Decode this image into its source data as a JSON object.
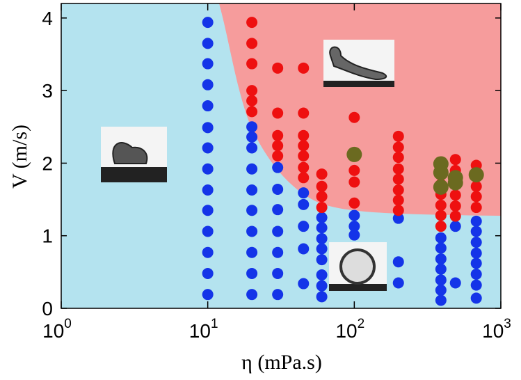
{
  "chart_data": {
    "type": "scatter",
    "xlabel": "η (mPa.s)",
    "ylabel": "V (m/s)",
    "xscale": "log",
    "xlim": [
      1,
      1000
    ],
    "ylim": [
      0,
      4.2
    ],
    "xticks": [
      {
        "value": 1,
        "label": "10",
        "exponent": "0"
      },
      {
        "value": 10,
        "label": "10",
        "exponent": "1"
      },
      {
        "value": 100,
        "label": "10",
        "exponent": "2"
      },
      {
        "value": 1000,
        "label": "10",
        "exponent": "3"
      }
    ],
    "yticks": [
      0,
      1,
      2,
      3,
      4
    ],
    "series": [
      {
        "color": "#1434e8",
        "x": [
          10,
          10,
          10,
          10,
          10,
          10,
          10,
          10,
          10,
          10,
          10,
          10,
          10,
          10,
          20,
          20,
          20,
          20,
          20,
          20,
          20,
          20,
          20,
          20,
          30,
          30,
          30,
          30,
          30,
          30,
          30,
          45,
          45,
          45,
          45,
          45,
          60,
          60,
          60,
          60,
          60,
          60,
          60,
          60,
          100,
          100,
          100,
          200,
          200,
          200,
          390,
          390,
          390,
          390,
          390,
          390,
          390,
          490,
          490,
          680,
          680,
          680,
          680,
          680,
          680,
          680,
          680
        ],
        "values": [
          3.94,
          3.65,
          3.37,
          3.08,
          2.79,
          2.49,
          2.21,
          1.92,
          1.63,
          1.35,
          1.06,
          0.77,
          0.48,
          0.19,
          2.5,
          2.36,
          2.21,
          1.92,
          1.63,
          1.35,
          1.06,
          0.77,
          0.48,
          0.19,
          1.94,
          1.64,
          1.36,
          1.06,
          0.77,
          0.48,
          0.19,
          1.59,
          1.43,
          1.13,
          0.82,
          0.34,
          1.25,
          1.11,
          0.96,
          0.82,
          0.67,
          0.46,
          0.31,
          0.16,
          1.28,
          1.13,
          1.01,
          1.24,
          0.64,
          0.35,
          0.97,
          0.83,
          0.68,
          0.54,
          0.39,
          0.25,
          0.11,
          1.13,
          0.35,
          1.2,
          1.06,
          0.91,
          0.76,
          0.62,
          0.47,
          0.32,
          0.14
        ]
      },
      {
        "color": "#ee1010",
        "x": [
          20,
          20,
          20,
          20,
          20,
          20,
          30,
          30,
          30,
          30,
          30,
          45,
          45,
          45,
          45,
          45,
          45,
          45,
          60,
          60,
          60,
          60,
          100,
          100,
          100,
          100,
          100,
          200,
          200,
          200,
          200,
          200,
          200,
          200,
          200,
          390,
          390,
          390,
          390,
          390,
          390,
          490,
          490,
          490,
          490,
          490,
          490,
          680,
          680,
          680,
          680,
          680
        ],
        "values": [
          3.94,
          3.65,
          3.37,
          3.0,
          2.86,
          2.71,
          3.31,
          2.69,
          2.38,
          2.24,
          2.1,
          3.31,
          2.69,
          2.38,
          2.24,
          2.1,
          1.94,
          1.8,
          1.85,
          1.68,
          1.54,
          1.39,
          2.63,
          2.11,
          1.9,
          1.74,
          1.45,
          2.37,
          2.22,
          2.08,
          1.92,
          1.78,
          1.63,
          1.49,
          1.35,
          1.87,
          1.71,
          1.57,
          1.42,
          1.28,
          1.13,
          2.05,
          1.9,
          1.7,
          1.56,
          1.41,
          1.27,
          1.97,
          1.83,
          1.68,
          1.54,
          1.39
        ]
      },
      {
        "color": "#6b6a20",
        "x": [
          100,
          390,
          390,
          390,
          490,
          490,
          680
        ],
        "values": [
          2.12,
          1.99,
          1.87,
          1.67,
          1.8,
          1.73,
          1.84
        ]
      }
    ]
  }
}
